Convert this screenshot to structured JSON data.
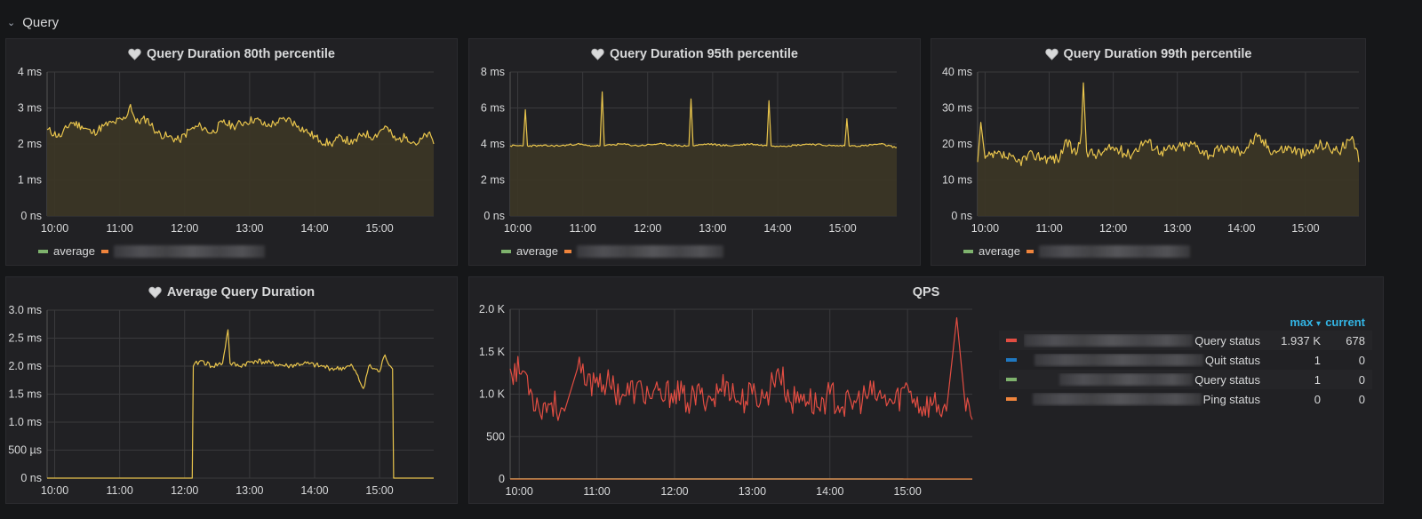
{
  "row": {
    "title": "Query"
  },
  "colors": {
    "yellow": "#e8c44c",
    "green": "#7eb26d",
    "orange": "#ef843c",
    "red": "#e24d42",
    "blue": "#1f78c1",
    "fill": "#3b3626",
    "grid": "#3a3a3d",
    "axis_text": "#d8d9da"
  },
  "panels": [
    {
      "title": "Query Duration 80th percentile",
      "icon": "heart-icon",
      "legend_label": "average"
    },
    {
      "title": "Query Duration 95th percentile",
      "icon": "heart-icon",
      "legend_label": "average"
    },
    {
      "title": "Query Duration 99th percentile",
      "icon": "heart-icon",
      "legend_label": "average"
    },
    {
      "title": "Average Query Duration",
      "icon": "heart-icon"
    },
    {
      "title": "QPS"
    }
  ],
  "qps_legend": {
    "headers": {
      "max": "max",
      "sort_icon": "▾",
      "current": "current"
    },
    "rows": [
      {
        "label": "Query status",
        "max": "1.937 K",
        "current": "678",
        "color": "#e24d42"
      },
      {
        "label": "Quit status",
        "max": "1",
        "current": "0",
        "color": "#1f78c1"
      },
      {
        "label": "Query status",
        "max": "1",
        "current": "0",
        "color": "#7eb26d"
      },
      {
        "label": "Ping status",
        "max": "0",
        "current": "0",
        "color": "#ef843c"
      }
    ]
  },
  "chart_data": [
    {
      "type": "area",
      "title": "Query Duration 80th percentile",
      "x_ticks": [
        "10:00",
        "11:00",
        "12:00",
        "13:00",
        "14:00",
        "15:00"
      ],
      "y_ticks": [
        "0 ns",
        "1 ms",
        "2 ms",
        "3 ms",
        "4 ms"
      ],
      "ylim": [
        0,
        4
      ],
      "x_range": [
        "09:53",
        "15:50"
      ],
      "series": [
        {
          "name": "average",
          "color": "#e8c44c",
          "x": [
            "09:53",
            "10:05",
            "10:15",
            "10:25",
            "10:35",
            "10:45",
            "10:55",
            "11:05",
            "11:10",
            "11:15",
            "11:25",
            "11:35",
            "11:45",
            "11:55",
            "12:05",
            "12:15",
            "12:25",
            "12:35",
            "12:45",
            "12:55",
            "13:05",
            "13:15",
            "13:25",
            "13:35",
            "13:45",
            "13:55",
            "14:05",
            "14:15",
            "14:25",
            "14:35",
            "14:45",
            "14:55",
            "15:05",
            "15:15",
            "15:25",
            "15:35",
            "15:45",
            "15:50"
          ],
          "values": [
            2.4,
            2.2,
            2.6,
            2.5,
            2.3,
            2.5,
            2.6,
            2.7,
            3.1,
            2.6,
            2.7,
            2.3,
            2.2,
            2.1,
            2.4,
            2.5,
            2.3,
            2.6,
            2.5,
            2.6,
            2.7,
            2.5,
            2.6,
            2.7,
            2.5,
            2.3,
            2.1,
            2.0,
            2.2,
            2.0,
            2.3,
            2.2,
            2.5,
            2.1,
            2.2,
            2.0,
            2.3,
            2.0
          ]
        }
      ]
    },
    {
      "type": "area",
      "title": "Query Duration 95th percentile",
      "x_ticks": [
        "10:00",
        "11:00",
        "12:00",
        "13:00",
        "14:00",
        "15:00"
      ],
      "y_ticks": [
        "0 ns",
        "2 ms",
        "4 ms",
        "6 ms",
        "8 ms"
      ],
      "ylim": [
        0,
        8
      ],
      "x_range": [
        "09:53",
        "15:50"
      ],
      "series": [
        {
          "name": "average",
          "color": "#e8c44c",
          "x": [
            "09:53",
            "10:05",
            "10:07",
            "10:09",
            "10:20",
            "10:40",
            "10:55",
            "11:05",
            "11:16",
            "11:18",
            "11:20",
            "11:35",
            "11:50",
            "12:10",
            "12:30",
            "12:38",
            "12:40",
            "12:42",
            "12:55",
            "13:15",
            "13:35",
            "13:50",
            "13:52",
            "13:54",
            "14:10",
            "14:30",
            "14:50",
            "15:02",
            "15:04",
            "15:06",
            "15:20",
            "15:35",
            "15:50"
          ],
          "values": [
            3.9,
            3.9,
            5.9,
            3.9,
            3.9,
            3.9,
            4.0,
            3.9,
            3.9,
            6.9,
            3.9,
            4.0,
            3.9,
            4.0,
            3.9,
            3.9,
            6.5,
            3.9,
            4.0,
            3.9,
            4.0,
            3.9,
            6.4,
            3.9,
            3.9,
            4.0,
            3.9,
            3.9,
            5.4,
            3.9,
            3.9,
            4.0,
            3.8
          ]
        }
      ]
    },
    {
      "type": "area",
      "title": "Query Duration 99th percentile",
      "x_ticks": [
        "10:00",
        "11:00",
        "12:00",
        "13:00",
        "14:00",
        "15:00"
      ],
      "y_ticks": [
        "0 ns",
        "10 ms",
        "20 ms",
        "30 ms",
        "40 ms"
      ],
      "ylim": [
        0,
        40
      ],
      "x_range": [
        "09:53",
        "15:50"
      ],
      "series": [
        {
          "name": "average",
          "color": "#e8c44c",
          "x": [
            "09:53",
            "09:56",
            "10:00",
            "10:15",
            "10:30",
            "10:45",
            "11:00",
            "11:10",
            "11:15",
            "11:25",
            "11:30",
            "11:32",
            "11:35",
            "11:45",
            "12:00",
            "12:15",
            "12:30",
            "12:45",
            "13:00",
            "13:15",
            "13:30",
            "13:45",
            "14:00",
            "14:15",
            "14:30",
            "14:45",
            "15:00",
            "15:15",
            "15:30",
            "15:45",
            "15:50"
          ],
          "values": [
            15,
            26,
            16,
            17,
            15,
            17,
            16,
            16,
            21,
            17,
            23,
            37,
            18,
            17,
            19,
            17,
            21,
            18,
            19,
            20,
            17,
            19,
            18,
            22,
            18,
            19,
            17,
            20,
            18,
            21,
            15
          ]
        }
      ]
    },
    {
      "type": "line",
      "title": "Average Query Duration",
      "x_ticks": [
        "10:00",
        "11:00",
        "12:00",
        "13:00",
        "14:00",
        "15:00"
      ],
      "y_ticks": [
        "0 ns",
        "500 µs",
        "1.0 ms",
        "1.5 ms",
        "2.0 ms",
        "2.5 ms",
        "3.0 ms"
      ],
      "ylim": [
        0,
        3
      ],
      "x_range": [
        "09:53",
        "15:50"
      ],
      "series": [
        {
          "name": "average",
          "color": "#e8c44c",
          "x": [
            "09:53",
            "12:07",
            "12:08",
            "12:15",
            "12:25",
            "12:35",
            "12:40",
            "12:42",
            "12:50",
            "13:05",
            "13:20",
            "13:35",
            "13:50",
            "14:05",
            "14:20",
            "14:35",
            "14:45",
            "14:50",
            "15:00",
            "15:05",
            "15:10",
            "15:12",
            "15:13",
            "15:50"
          ],
          "values": [
            0,
            0,
            2.0,
            2.1,
            2.0,
            2.05,
            2.65,
            2.05,
            2.0,
            2.1,
            2.05,
            2.0,
            2.05,
            2.0,
            1.95,
            2.0,
            1.6,
            2.0,
            1.9,
            2.2,
            2.0,
            1.95,
            0,
            0
          ]
        }
      ]
    },
    {
      "type": "line",
      "title": "QPS",
      "x_ticks": [
        "10:00",
        "11:00",
        "12:00",
        "13:00",
        "14:00",
        "15:00"
      ],
      "y_ticks": [
        "0",
        "500",
        "1.0 K",
        "1.5 K",
        "2.0 K"
      ],
      "ylim": [
        0,
        2000
      ],
      "x_range": [
        "09:53",
        "15:50"
      ],
      "series": [
        {
          "name": "Query status",
          "color": "#e24d42",
          "x": [
            "09:53",
            "10:05",
            "10:10",
            "10:15",
            "10:25",
            "10:35",
            "10:45",
            "10:52",
            "11:00",
            "11:10",
            "11:20",
            "11:30",
            "11:40",
            "11:50",
            "12:00",
            "12:10",
            "12:20",
            "12:30",
            "12:40",
            "12:50",
            "13:00",
            "13:10",
            "13:20",
            "13:30",
            "13:40",
            "13:50",
            "14:00",
            "14:10",
            "14:20",
            "14:30",
            "14:40",
            "14:50",
            "15:00",
            "15:10",
            "15:20",
            "15:30",
            "15:38",
            "15:45",
            "15:50"
          ],
          "values": [
            1300,
            1250,
            1000,
            850,
            900,
            800,
            1300,
            1100,
            1200,
            1100,
            1000,
            1050,
            1000,
            950,
            1050,
            900,
            1000,
            950,
            1150,
            900,
            1000,
            950,
            1300,
            900,
            1000,
            850,
            1000,
            850,
            900,
            1000,
            950,
            900,
            1100,
            850,
            900,
            800,
            1900,
            800,
            700
          ]
        },
        {
          "name": "Quit status",
          "color": "#1f78c1",
          "x": [
            "09:53",
            "15:50"
          ],
          "values": [
            1,
            0
          ]
        },
        {
          "name": "Query status",
          "color": "#7eb26d",
          "x": [
            "09:53",
            "15:50"
          ],
          "values": [
            1,
            0
          ]
        },
        {
          "name": "Ping status",
          "color": "#ef843c",
          "x": [
            "09:53",
            "15:50"
          ],
          "values": [
            0,
            0
          ]
        }
      ]
    }
  ]
}
